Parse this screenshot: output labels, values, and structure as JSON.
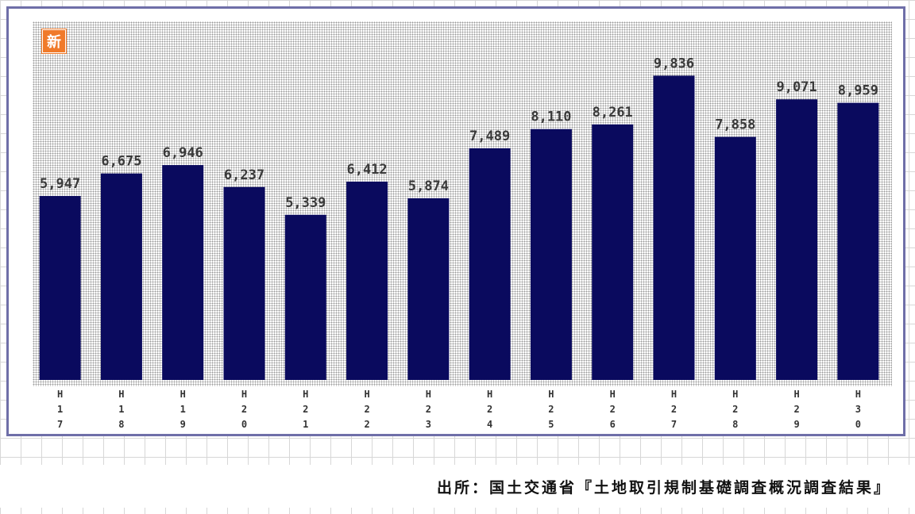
{
  "badge": {
    "text": "新"
  },
  "source": "出所：国土交通省『土地取引規制基礎調査概況調査結果』",
  "colors": {
    "bar": "#0a0a5e",
    "frame": "#6f6fa8",
    "badge": "#f07a2a"
  },
  "chart_data": {
    "type": "bar",
    "title": "",
    "xlabel": "",
    "ylabel": "",
    "categories": [
      "H17",
      "H18",
      "H19",
      "H20",
      "H21",
      "H22",
      "H23",
      "H24",
      "H25",
      "H26",
      "H27",
      "H28",
      "H29",
      "H30"
    ],
    "values": [
      5947,
      6675,
      6946,
      6237,
      5339,
      6412,
      5874,
      7489,
      8110,
      8261,
      9836,
      7858,
      9071,
      8959
    ],
    "value_labels": [
      "5,947",
      "6,675",
      "6,946",
      "6,237",
      "5,339",
      "6,412",
      "5,874",
      "7,489",
      "8,110",
      "8,261",
      "9,836",
      "7,858",
      "9,071",
      "8,959"
    ],
    "ylim": [
      0,
      12000
    ],
    "grid": false,
    "legend": "none"
  }
}
